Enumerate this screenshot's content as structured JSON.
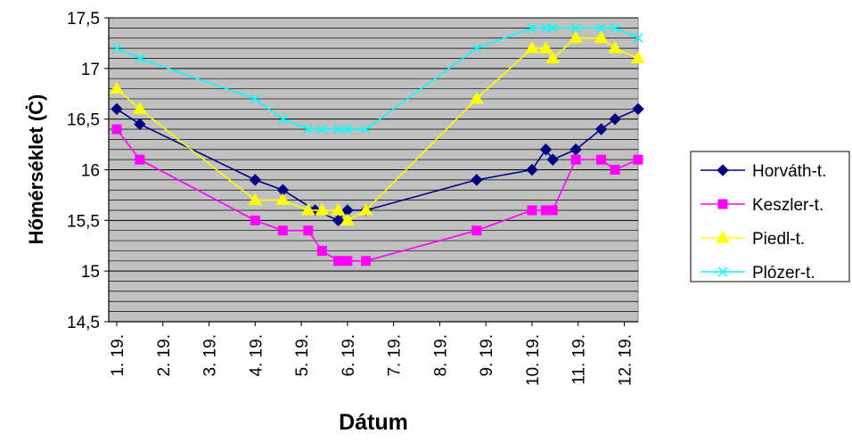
{
  "chart_data": {
    "type": "line",
    "xlabel": "Dátum",
    "ylabel": "Hőmérséklet (Ċ)",
    "ylim": [
      14.5,
      17.5
    ],
    "yticks": [
      "14,5",
      "15",
      "15,5",
      "16",
      "16,5",
      "17",
      "17,5"
    ],
    "xticks": [
      "1. 19.",
      "2. 19.",
      "3. 19.",
      "4. 19.",
      "5. 19.",
      "6. 19.",
      "7. 19.",
      "8. 19.",
      "9. 19.",
      "10. 19.",
      "11. 19.",
      "12. 19."
    ],
    "grid": true,
    "legend_position": "right",
    "plot_background": "#c0c0c0",
    "series": [
      {
        "name": "Horváth-t.",
        "color": "#000080",
        "marker": "diamond",
        "x": [
          1.0,
          1.5,
          4.0,
          4.6,
          5.3,
          5.8,
          6.0,
          6.4,
          8.8,
          10.0,
          10.3,
          10.45,
          10.95,
          11.5,
          11.8,
          12.3
        ],
        "y": [
          16.6,
          16.45,
          15.9,
          15.8,
          15.6,
          15.5,
          15.6,
          15.6,
          15.9,
          16.0,
          16.2,
          16.1,
          16.2,
          16.4,
          16.5,
          16.6
        ]
      },
      {
        "name": "Keszler-t.",
        "color": "#ff00ff",
        "marker": "square",
        "x": [
          1.0,
          1.5,
          4.0,
          4.6,
          5.15,
          5.45,
          5.8,
          6.0,
          6.4,
          8.8,
          10.0,
          10.3,
          10.45,
          10.95,
          11.5,
          11.8,
          12.3
        ],
        "y": [
          16.4,
          16.1,
          15.5,
          15.4,
          15.4,
          15.2,
          15.1,
          15.1,
          15.1,
          15.4,
          15.6,
          15.6,
          15.6,
          16.1,
          16.1,
          16.0,
          16.1
        ]
      },
      {
        "name": "Piedl-t.",
        "color": "#ffff00",
        "marker": "triangle",
        "x": [
          1.0,
          1.5,
          4.0,
          4.6,
          5.15,
          5.45,
          5.8,
          6.0,
          6.4,
          8.8,
          10.0,
          10.3,
          10.45,
          10.95,
          11.5,
          11.8,
          12.3
        ],
        "y": [
          16.8,
          16.6,
          15.7,
          15.7,
          15.6,
          15.6,
          15.6,
          15.5,
          15.6,
          16.7,
          17.2,
          17.2,
          17.1,
          17.3,
          17.3,
          17.2,
          17.1
        ]
      },
      {
        "name": "Plózer-t.",
        "color": "#00ffff",
        "marker": "x",
        "x": [
          1.0,
          1.5,
          4.0,
          4.6,
          5.15,
          5.45,
          5.8,
          6.0,
          6.4,
          8.8,
          10.0,
          10.3,
          10.45,
          10.95,
          11.5,
          11.8,
          12.3
        ],
        "y": [
          17.2,
          17.1,
          16.7,
          16.5,
          16.4,
          16.4,
          16.4,
          16.4,
          16.4,
          17.2,
          17.4,
          17.4,
          17.4,
          17.4,
          17.4,
          17.4,
          17.3
        ]
      }
    ]
  }
}
